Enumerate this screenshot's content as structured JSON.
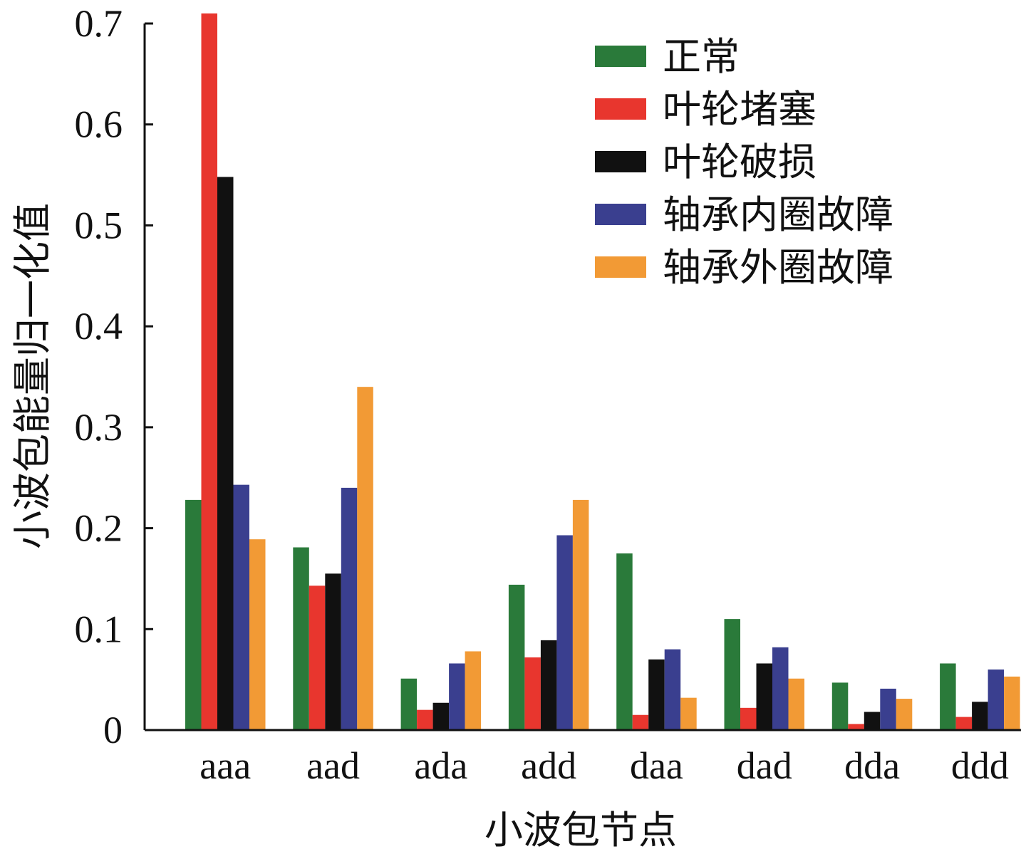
{
  "chart_data": {
    "type": "bar",
    "title": "",
    "xlabel": "小波包节点",
    "ylabel": "小波包能量归一化值",
    "categories": [
      "aaa",
      "aad",
      "ada",
      "add",
      "daa",
      "dad",
      "dda",
      "ddd"
    ],
    "ylim": [
      0,
      0.7
    ],
    "yticks": [
      "0",
      "0.1",
      "0.2",
      "0.3",
      "0.4",
      "0.5",
      "0.6",
      "0.7"
    ],
    "grid": false,
    "legend_position": "top-right",
    "series": [
      {
        "name": "正常",
        "color": "#2a7a3a",
        "values": [
          0.228,
          0.181,
          0.051,
          0.144,
          0.175,
          0.11,
          0.047,
          0.066
        ]
      },
      {
        "name": "叶轮堵塞",
        "color": "#e8362e",
        "values": [
          0.71,
          0.143,
          0.02,
          0.072,
          0.015,
          0.022,
          0.006,
          0.013
        ]
      },
      {
        "name": "叶轮破损",
        "color": "#111111",
        "values": [
          0.548,
          0.155,
          0.027,
          0.089,
          0.07,
          0.066,
          0.018,
          0.028
        ]
      },
      {
        "name": "轴承内圈故障",
        "color": "#3a3f8f",
        "values": [
          0.243,
          0.24,
          0.066,
          0.193,
          0.08,
          0.082,
          0.041,
          0.06
        ]
      },
      {
        "name": "轴承外圈故障",
        "color": "#f29a35",
        "values": [
          0.189,
          0.34,
          0.078,
          0.228,
          0.032,
          0.051,
          0.031,
          0.053
        ]
      }
    ]
  }
}
